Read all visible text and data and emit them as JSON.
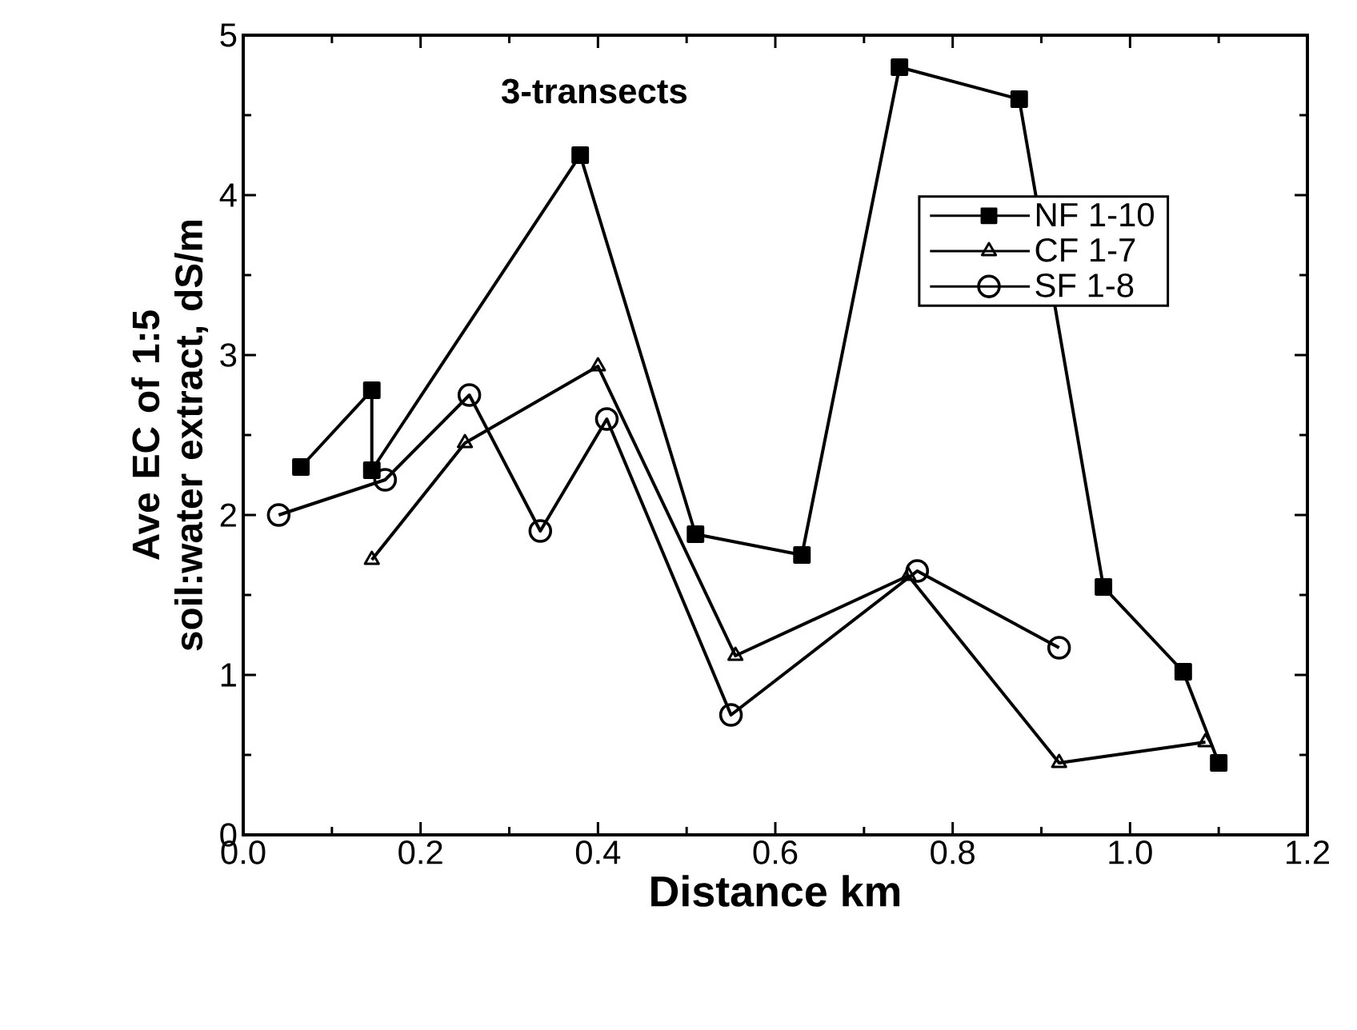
{
  "chart_data": {
    "type": "line",
    "xlabel": "Distance km",
    "ylabel": "Ave EC of 1:5 soil:water extract,   dS/m",
    "annotations": [
      "3-transects"
    ],
    "xlim": [
      0,
      1.2
    ],
    "ylim": [
      0,
      5
    ],
    "xticks": [
      {
        "value": 0,
        "label": "0.0"
      },
      0.2,
      0.4,
      0.6,
      0.8,
      {
        "value": 1,
        "label": "1.0"
      },
      1.2
    ],
    "yticks": [
      0,
      1,
      2,
      3,
      4,
      5
    ],
    "grid": false,
    "legend": "right",
    "line_style": "solid",
    "series": [
      {
        "name": "NF 1-10",
        "color": "#000000",
        "marker": "square",
        "x": [
          0.065,
          0.145,
          0.145,
          0.38,
          0.51,
          0.63,
          0.74,
          0.875,
          0.97,
          1.06,
          1.1
        ],
        "values": [
          2.3,
          2.78,
          2.28,
          4.25,
          1.88,
          1.75,
          4.8,
          4.6,
          1.55,
          1.02,
          0.45
        ]
      },
      {
        "name": "CF 1-7",
        "color": "#000000",
        "marker": "triangle",
        "x": [
          0.145,
          0.25,
          0.4,
          0.555,
          0.75,
          0.92,
          1.085
        ],
        "values": [
          1.72,
          2.45,
          2.93,
          1.12,
          1.62,
          0.45,
          0.58
        ]
      },
      {
        "name": "SF 1-8",
        "color": "#000000",
        "marker": "circle",
        "x": [
          0.04,
          0.16,
          0.255,
          0.335,
          0.41,
          0.55,
          0.76,
          0.92
        ],
        "values": [
          2.0,
          2.22,
          2.75,
          1.9,
          2.6,
          0.75,
          1.65,
          1.17
        ]
      }
    ]
  }
}
